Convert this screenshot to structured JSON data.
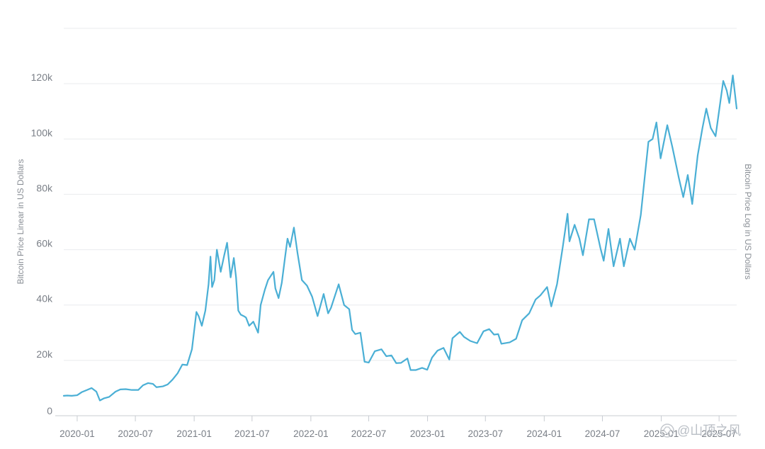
{
  "chart_data": {
    "type": "line",
    "title": "",
    "ylabel": "Bitcoin Price Linear in US Dollars",
    "ylabel_right": "Bitcoin Price Log in US Dollars",
    "xlabel": "",
    "ylim": [
      0,
      140000
    ],
    "xlim": [
      "2019-11-20",
      "2025-08-25"
    ],
    "grid": true,
    "y_ticks": [
      {
        "value": 0,
        "label": "0"
      },
      {
        "value": 20000,
        "label": "20k"
      },
      {
        "value": 40000,
        "label": "40k"
      },
      {
        "value": 60000,
        "label": "60k"
      },
      {
        "value": 80000,
        "label": "80k"
      },
      {
        "value": 100000,
        "label": "100k"
      },
      {
        "value": 120000,
        "label": "120k"
      }
    ],
    "x_ticks": [
      {
        "value": "2020-01-01",
        "label": "2020-01"
      },
      {
        "value": "2020-07-01",
        "label": "2020-07"
      },
      {
        "value": "2021-01-01",
        "label": "2021-01"
      },
      {
        "value": "2021-07-01",
        "label": "2021-07"
      },
      {
        "value": "2022-01-01",
        "label": "2022-01"
      },
      {
        "value": "2022-07-01",
        "label": "2022-07"
      },
      {
        "value": "2023-01-01",
        "label": "2023-01"
      },
      {
        "value": "2023-07-01",
        "label": "2023-07"
      },
      {
        "value": "2024-01-01",
        "label": "2024-01"
      },
      {
        "value": "2024-07-01",
        "label": "2024-07"
      },
      {
        "value": "2025-01-01",
        "label": "2025-01"
      },
      {
        "value": "2025-07-01",
        "label": "2025-07"
      }
    ],
    "series": [
      {
        "color": "#4aafd5",
        "points": [
          [
            "2019-11-20",
            7200
          ],
          [
            "2019-12-01",
            7300
          ],
          [
            "2019-12-15",
            7200
          ],
          [
            "2020-01-01",
            7400
          ],
          [
            "2020-01-15",
            8500
          ],
          [
            "2020-02-01",
            9300
          ],
          [
            "2020-02-15",
            10000
          ],
          [
            "2020-03-01",
            8700
          ],
          [
            "2020-03-12",
            5500
          ],
          [
            "2020-03-25",
            6300
          ],
          [
            "2020-04-10",
            6800
          ],
          [
            "2020-04-30",
            8700
          ],
          [
            "2020-05-15",
            9500
          ],
          [
            "2020-06-01",
            9600
          ],
          [
            "2020-06-20",
            9300
          ],
          [
            "2020-07-10",
            9300
          ],
          [
            "2020-07-25",
            11000
          ],
          [
            "2020-08-10",
            11800
          ],
          [
            "2020-08-25",
            11500
          ],
          [
            "2020-09-05",
            10300
          ],
          [
            "2020-09-25",
            10600
          ],
          [
            "2020-10-10",
            11300
          ],
          [
            "2020-10-25",
            13000
          ],
          [
            "2020-11-10",
            15300
          ],
          [
            "2020-11-25",
            18500
          ],
          [
            "2020-12-10",
            18300
          ],
          [
            "2020-12-25",
            24000
          ],
          [
            "2021-01-08",
            37500
          ],
          [
            "2021-01-15",
            36000
          ],
          [
            "2021-01-25",
            32500
          ],
          [
            "2021-02-05",
            38000
          ],
          [
            "2021-02-15",
            47500
          ],
          [
            "2021-02-21",
            57500
          ],
          [
            "2021-02-26",
            46500
          ],
          [
            "2021-03-05",
            49000
          ],
          [
            "2021-03-13",
            60000
          ],
          [
            "2021-03-25",
            52000
          ],
          [
            "2021-04-05",
            58000
          ],
          [
            "2021-04-14",
            62500
          ],
          [
            "2021-04-25",
            50000
          ],
          [
            "2021-05-05",
            57000
          ],
          [
            "2021-05-12",
            50000
          ],
          [
            "2021-05-19",
            38000
          ],
          [
            "2021-05-27",
            36500
          ],
          [
            "2021-06-05",
            36000
          ],
          [
            "2021-06-12",
            35500
          ],
          [
            "2021-06-22",
            32500
          ],
          [
            "2021-07-05",
            34000
          ],
          [
            "2021-07-20",
            30000
          ],
          [
            "2021-07-28",
            40000
          ],
          [
            "2021-08-10",
            45500
          ],
          [
            "2021-08-20",
            49000
          ],
          [
            "2021-09-06",
            52000
          ],
          [
            "2021-09-12",
            46000
          ],
          [
            "2021-09-22",
            42500
          ],
          [
            "2021-10-02",
            48000
          ],
          [
            "2021-10-12",
            57000
          ],
          [
            "2021-10-20",
            64000
          ],
          [
            "2021-10-28",
            61000
          ],
          [
            "2021-11-09",
            68000
          ],
          [
            "2021-11-20",
            59000
          ],
          [
            "2021-12-04",
            49000
          ],
          [
            "2021-12-20",
            47000
          ],
          [
            "2022-01-05",
            43000
          ],
          [
            "2022-01-22",
            36000
          ],
          [
            "2022-02-10",
            44000
          ],
          [
            "2022-02-24",
            37000
          ],
          [
            "2022-03-05",
            39000
          ],
          [
            "2022-03-29",
            47500
          ],
          [
            "2022-04-15",
            40000
          ],
          [
            "2022-05-01",
            38500
          ],
          [
            "2022-05-10",
            31000
          ],
          [
            "2022-05-20",
            29500
          ],
          [
            "2022-06-05",
            30000
          ],
          [
            "2022-06-18",
            19500
          ],
          [
            "2022-07-01",
            19200
          ],
          [
            "2022-07-20",
            23300
          ],
          [
            "2022-08-10",
            24000
          ],
          [
            "2022-08-25",
            21500
          ],
          [
            "2022-09-10",
            21800
          ],
          [
            "2022-09-25",
            19000
          ],
          [
            "2022-10-10",
            19100
          ],
          [
            "2022-10-30",
            20700
          ],
          [
            "2022-11-09",
            16500
          ],
          [
            "2022-11-25",
            16500
          ],
          [
            "2022-12-15",
            17300
          ],
          [
            "2022-12-31",
            16600
          ],
          [
            "2023-01-15",
            21000
          ],
          [
            "2023-02-01",
            23500
          ],
          [
            "2023-02-20",
            24500
          ],
          [
            "2023-03-10",
            20300
          ],
          [
            "2023-03-20",
            28000
          ],
          [
            "2023-04-12",
            30300
          ],
          [
            "2023-04-25",
            28500
          ],
          [
            "2023-05-15",
            27000
          ],
          [
            "2023-06-05",
            26200
          ],
          [
            "2023-06-25",
            30500
          ],
          [
            "2023-07-13",
            31300
          ],
          [
            "2023-07-28",
            29300
          ],
          [
            "2023-08-10",
            29500
          ],
          [
            "2023-08-20",
            26000
          ],
          [
            "2023-09-15",
            26500
          ],
          [
            "2023-10-05",
            27800
          ],
          [
            "2023-10-24",
            34500
          ],
          [
            "2023-11-15",
            37000
          ],
          [
            "2023-12-05",
            42000
          ],
          [
            "2023-12-20",
            43500
          ],
          [
            "2024-01-10",
            46500
          ],
          [
            "2024-01-23",
            39500
          ],
          [
            "2024-02-10",
            47500
          ],
          [
            "2024-02-28",
            61000
          ],
          [
            "2024-03-14",
            73000
          ],
          [
            "2024-03-20",
            63000
          ],
          [
            "2024-04-05",
            69000
          ],
          [
            "2024-04-20",
            64000
          ],
          [
            "2024-05-01",
            58000
          ],
          [
            "2024-05-20",
            71000
          ],
          [
            "2024-06-05",
            71000
          ],
          [
            "2024-06-25",
            60500
          ],
          [
            "2024-07-05",
            56000
          ],
          [
            "2024-07-20",
            67500
          ],
          [
            "2024-08-05",
            54000
          ],
          [
            "2024-08-25",
            64000
          ],
          [
            "2024-09-06",
            54000
          ],
          [
            "2024-09-25",
            64000
          ],
          [
            "2024-10-10",
            60000
          ],
          [
            "2024-10-29",
            72500
          ],
          [
            "2024-11-12",
            88000
          ],
          [
            "2024-11-22",
            99000
          ],
          [
            "2024-12-05",
            100000
          ],
          [
            "2024-12-17",
            106000
          ],
          [
            "2024-12-30",
            93000
          ],
          [
            "2025-01-20",
            105000
          ],
          [
            "2025-02-05",
            97000
          ],
          [
            "2025-02-25",
            86000
          ],
          [
            "2025-03-11",
            79000
          ],
          [
            "2025-03-25",
            87000
          ],
          [
            "2025-04-08",
            76500
          ],
          [
            "2025-04-25",
            94000
          ],
          [
            "2025-05-10",
            104000
          ],
          [
            "2025-05-22",
            111000
          ],
          [
            "2025-06-05",
            104000
          ],
          [
            "2025-06-20",
            101000
          ],
          [
            "2025-07-14",
            121000
          ],
          [
            "2025-07-25",
            117500
          ],
          [
            "2025-08-02",
            113000
          ],
          [
            "2025-08-13",
            123000
          ],
          [
            "2025-08-25",
            111000
          ]
        ]
      }
    ]
  },
  "watermark": {
    "text": "@山顶之风",
    "icon": "diamond-logo-icon"
  }
}
